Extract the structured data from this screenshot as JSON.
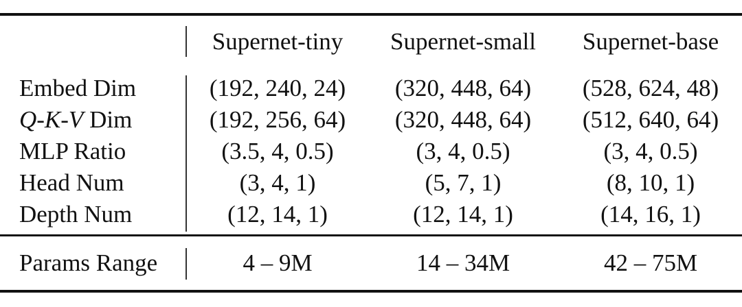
{
  "table": {
    "columns": [
      "Supernet-tiny",
      "Supernet-small",
      "Supernet-base"
    ],
    "rows": [
      {
        "label": "Embed Dim",
        "values": [
          "(192, 240, 24)",
          "(320, 448, 64)",
          "(528, 624, 48)"
        ]
      },
      {
        "label_italic": "Q-K-V",
        "label": " Dim",
        "values": [
          "(192, 256, 64)",
          "(320, 448, 64)",
          "(512, 640, 64)"
        ]
      },
      {
        "label": "MLP Ratio",
        "values": [
          "(3.5, 4, 0.5)",
          "(3, 4, 0.5)",
          "(3, 4, 0.5)"
        ]
      },
      {
        "label": "Head Num",
        "values": [
          "(3, 4, 1)",
          "(5, 7, 1)",
          "(8, 10, 1)"
        ]
      },
      {
        "label": "Depth Num",
        "values": [
          "(12, 14, 1)",
          "(12, 14, 1)",
          "(14, 16, 1)"
        ]
      }
    ],
    "footer": {
      "label": "Params Range",
      "values": [
        "4 – 9M",
        "14 – 34M",
        "42 – 75M"
      ]
    }
  }
}
